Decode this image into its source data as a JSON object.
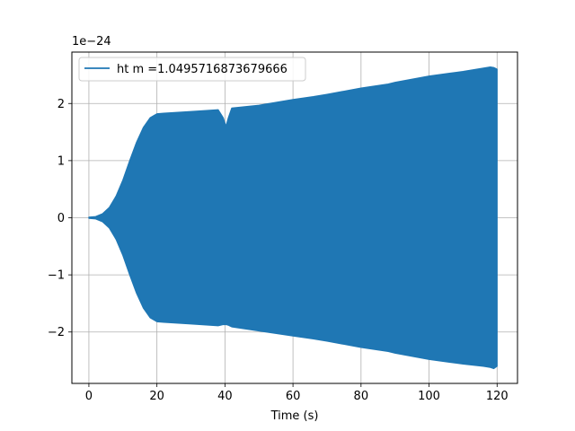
{
  "chart_data": {
    "type": "line",
    "title": "",
    "xlabel": "Time (s)",
    "ylabel": "",
    "y_offset_text": "1e−24",
    "xlim": [
      -5,
      126
    ],
    "ylim": [
      -2.9,
      2.9
    ],
    "xticks": [
      0,
      20,
      40,
      60,
      80,
      100,
      120
    ],
    "yticks": [
      -2,
      -1,
      0,
      1,
      2
    ],
    "xtick_labels": [
      "0",
      "20",
      "40",
      "60",
      "80",
      100,
      120
    ],
    "ytick_labels": [
      "−2",
      "−1",
      "0",
      "1",
      "2"
    ],
    "grid": true,
    "legend": {
      "placement": "upper-left"
    },
    "series": [
      {
        "name": "ht m =1.0495716873679666",
        "color": "#1f77b4",
        "fill_between_envelope": true,
        "x": [
          0,
          2,
          4,
          6,
          8,
          10,
          12,
          14,
          16,
          18,
          20,
          22,
          30,
          38,
          39.5,
          40.3,
          41,
          42,
          50,
          60,
          66,
          70,
          80,
          88,
          90,
          100,
          106,
          110,
          116,
          118,
          119,
          120
        ],
        "upper": [
          0.01,
          0.02,
          0.07,
          0.18,
          0.38,
          0.66,
          1.0,
          1.32,
          1.58,
          1.75,
          1.82,
          1.83,
          1.86,
          1.89,
          1.75,
          1.6,
          1.75,
          1.92,
          1.97,
          2.07,
          2.12,
          2.16,
          2.27,
          2.34,
          2.37,
          2.48,
          2.53,
          2.56,
          2.62,
          2.64,
          2.63,
          2.6
        ],
        "lower": [
          -0.01,
          -0.02,
          -0.07,
          -0.18,
          -0.38,
          -0.66,
          -1.0,
          -1.32,
          -1.58,
          -1.75,
          -1.82,
          -1.83,
          -1.86,
          -1.89,
          -1.87,
          -1.87,
          -1.88,
          -1.91,
          -1.98,
          -2.07,
          -2.12,
          -2.16,
          -2.27,
          -2.34,
          -2.37,
          -2.48,
          -2.53,
          -2.56,
          -2.6,
          -2.62,
          -2.64,
          -2.6
        ]
      }
    ]
  }
}
